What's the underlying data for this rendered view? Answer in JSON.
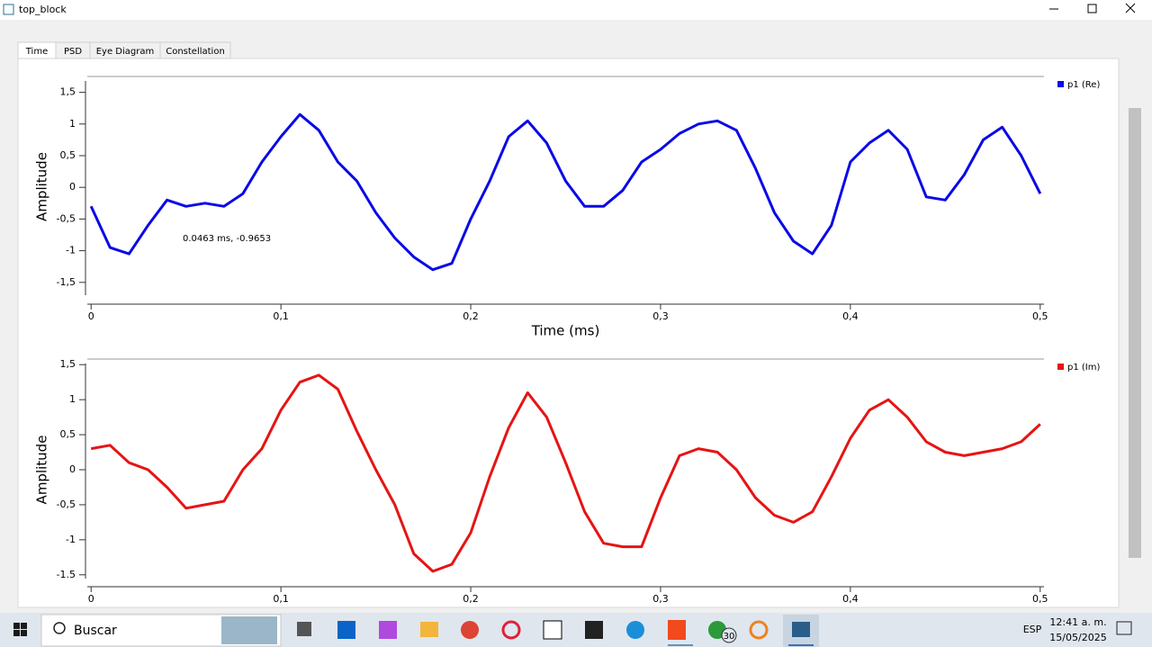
{
  "window": {
    "title": "top_block"
  },
  "tabs": [
    "Time",
    "PSD",
    "Eye Diagram",
    "Constellation"
  ],
  "chart_data": [
    {
      "type": "line",
      "y_label": "Amplitude",
      "x_label": "Time (ms)",
      "annotation": "0.0463 ms, -0.9653",
      "x": [
        0,
        0.01,
        0.02,
        0.03,
        0.04,
        0.05,
        0.06,
        0.07,
        0.08,
        0.09,
        0.1,
        0.11,
        0.12,
        0.13,
        0.14,
        0.15,
        0.16,
        0.17,
        0.18,
        0.19,
        0.2,
        0.21,
        0.22,
        0.23,
        0.24,
        0.25,
        0.26,
        0.27,
        0.28,
        0.29,
        0.3,
        0.31,
        0.32,
        0.33,
        0.34,
        0.35,
        0.36,
        0.37,
        0.38,
        0.39,
        0.4,
        0.41,
        0.42,
        0.43,
        0.44,
        0.45,
        0.46,
        0.47,
        0.48,
        0.49,
        0.5
      ],
      "series": [
        {
          "name": "p1 (Re)",
          "color": "#0a0ae6",
          "values": [
            -0.3,
            -0.95,
            -1.05,
            -0.6,
            -0.2,
            -0.3,
            -0.25,
            -0.3,
            -0.1,
            0.4,
            0.8,
            1.15,
            0.9,
            0.4,
            0.1,
            -0.4,
            -0.8,
            -1.1,
            -1.3,
            -1.2,
            -0.5,
            0.1,
            0.8,
            1.05,
            0.7,
            0.1,
            -0.3,
            -0.3,
            -0.05,
            0.4,
            0.6,
            0.85,
            1.0,
            1.05,
            0.9,
            0.3,
            -0.4,
            -0.85,
            -1.05,
            -0.6,
            0.4,
            0.7,
            0.9,
            0.6,
            -0.15,
            -0.2,
            0.2,
            0.75,
            0.95,
            0.5,
            -0.1
          ]
        }
      ],
      "xlim": [
        -0.002,
        0.502
      ],
      "ylim": [
        -1.73,
        1.75
      ],
      "xticks": [
        0,
        {
          "value": 0.1,
          "label": "0,1"
        },
        {
          "value": 0.2,
          "label": "0,2"
        },
        {
          "value": 0.3,
          "label": "0,3"
        },
        {
          "value": 0.4,
          "label": "0,4"
        },
        {
          "value": 0.5,
          "label": "0,5"
        }
      ],
      "yticks": [
        {
          "value": 1.5,
          "label": "1,5"
        },
        1,
        {
          "value": 0.5,
          "label": "0,5"
        },
        0,
        {
          "value": -0.5,
          "label": "-0,5"
        },
        -1,
        {
          "value": -1.5,
          "label": "-1,5"
        }
      ]
    },
    {
      "type": "line",
      "y_label": "Amplitude",
      "x": [
        0,
        0.01,
        0.02,
        0.03,
        0.04,
        0.05,
        0.06,
        0.07,
        0.08,
        0.09,
        0.1,
        0.11,
        0.12,
        0.13,
        0.14,
        0.15,
        0.16,
        0.17,
        0.18,
        0.19,
        0.2,
        0.21,
        0.22,
        0.23,
        0.24,
        0.25,
        0.26,
        0.27,
        0.28,
        0.29,
        0.3,
        0.31,
        0.32,
        0.33,
        0.34,
        0.35,
        0.36,
        0.37,
        0.38,
        0.39,
        0.4,
        0.41,
        0.42,
        0.43,
        0.44,
        0.45,
        0.46,
        0.47,
        0.48,
        0.49,
        0.5
      ],
      "series": [
        {
          "name": "p1 (Im)",
          "color": "#e61414",
          "values": [
            0.3,
            0.35,
            0.1,
            0.0,
            -0.25,
            -0.55,
            -0.5,
            -0.45,
            0.0,
            0.3,
            0.85,
            1.25,
            1.35,
            1.15,
            0.55,
            0.0,
            -0.5,
            -1.2,
            -1.45,
            -1.35,
            -0.9,
            -0.1,
            0.6,
            1.1,
            0.75,
            0.1,
            -0.6,
            -1.05,
            -1.1,
            -1.1,
            -0.4,
            0.2,
            0.3,
            0.25,
            0.0,
            -0.4,
            -0.65,
            -0.75,
            -0.6,
            -0.1,
            0.45,
            0.85,
            1.0,
            0.75,
            0.4,
            0.25,
            0.2,
            0.25,
            0.3,
            0.4,
            0.65
          ]
        }
      ],
      "xlim": [
        -0.002,
        0.502
      ],
      "ylim": [
        -1.58,
        1.58
      ],
      "xticks": [
        0,
        {
          "value": 0.1,
          "label": "0,1"
        },
        {
          "value": 0.2,
          "label": "0,2"
        },
        {
          "value": 0.3,
          "label": "0,3"
        },
        {
          "value": 0.4,
          "label": "0,4"
        },
        {
          "value": 0.5,
          "label": "0,5"
        }
      ],
      "yticks": [
        {
          "value": 1.5,
          "label": "1,5"
        },
        1,
        {
          "value": 0.5,
          "label": "0,5"
        },
        0,
        {
          "value": -0.5,
          "label": "-0,5"
        },
        -1,
        -1.5
      ]
    }
  ],
  "taskbar": {
    "search": "Buscar",
    "badge": "30",
    "language": "ESP",
    "time": "12:41 a. m.",
    "date": "15/05/2025"
  }
}
